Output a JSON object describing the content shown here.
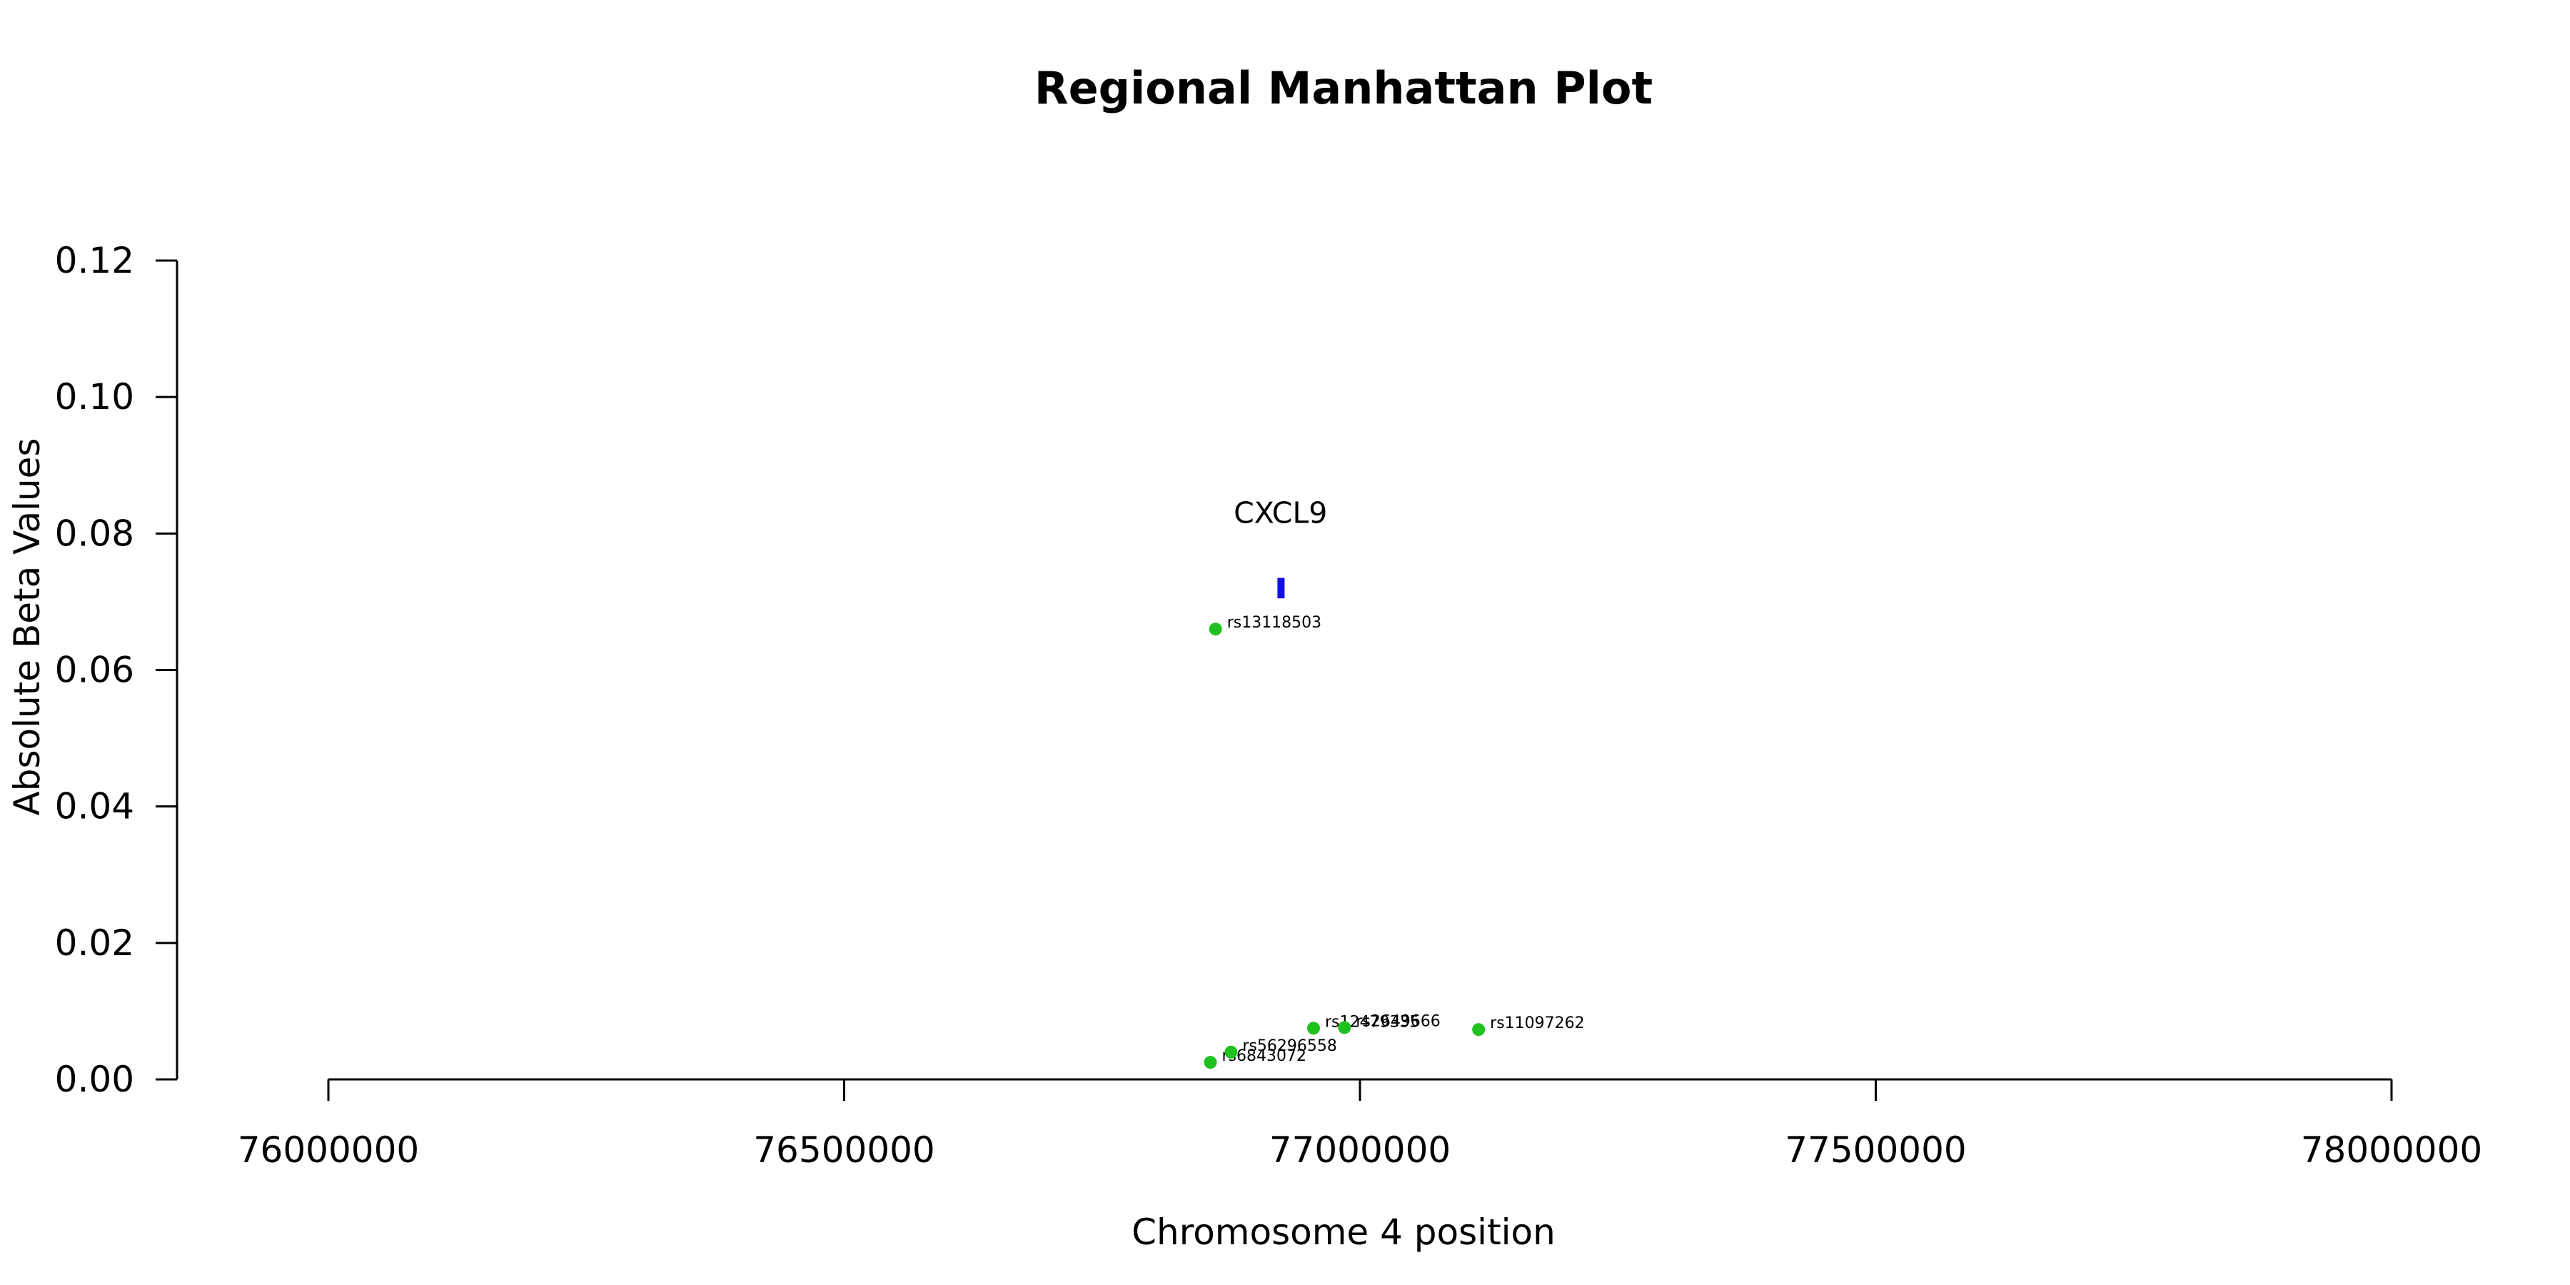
{
  "colors": {
    "background": "#ffffff",
    "axis": "#000000",
    "snp_point": "#1ec11e",
    "gene": "#1010e6"
  },
  "chart_data": {
    "type": "scatter",
    "title": "Regional Manhattan Plot",
    "xlabel": "Chromosome 4 position",
    "ylabel": "Absolute Beta Values",
    "xlim": [
      75855000,
      78090000
    ],
    "ylim": [
      0,
      0.12
    ],
    "x_ticks": [
      76000000,
      76500000,
      77000000,
      77500000,
      78000000
    ],
    "x_tick_labels": [
      "76000000",
      "76500000",
      "77000000",
      "77500000",
      "78000000"
    ],
    "y_ticks": [
      0,
      0.02,
      0.04,
      0.06,
      0.08,
      0.1,
      0.12
    ],
    "y_tick_labels": [
      "0.00",
      "0.02",
      "0.04",
      "0.06",
      "0.08",
      "0.10",
      "0.12"
    ],
    "grid": false,
    "series": [
      {
        "points": [
          {
            "x": 76855000,
            "y": 0.0025,
            "label": "rs6843072"
          },
          {
            "x": 76860000,
            "y": 0.066,
            "label": "rs13118503"
          },
          {
            "x": 76875000,
            "y": 0.004,
            "label": "rs56296558"
          },
          {
            "x": 76955000,
            "y": 0.0075,
            "label": "rs12479335"
          },
          {
            "x": 76985000,
            "y": 0.0076,
            "label": "rs2649666"
          },
          {
            "x": 77115000,
            "y": 0.0073,
            "label": "rs11097262"
          }
        ]
      }
    ],
    "genes": [
      {
        "name": "CXCL9",
        "start": 76920000,
        "end": 76926000,
        "y": 0.0715,
        "y_range": [
          0.0705,
          0.0735
        ]
      }
    ]
  }
}
